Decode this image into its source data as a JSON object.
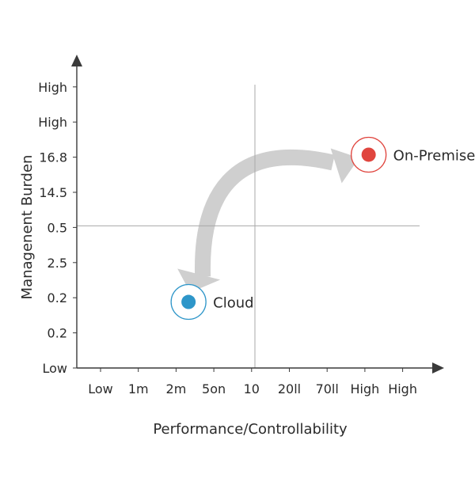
{
  "chart_data": {
    "type": "scatter",
    "xlabel": "Performance/Controllability",
    "ylabel": "Managenent Burden",
    "x_ticks": [
      "Low",
      "1m",
      "2m",
      "5on",
      "10",
      "20ll",
      "70ll",
      "High",
      "High"
    ],
    "y_ticks": [
      "Low",
      "0.2",
      "0.2",
      "2.5",
      "0.5",
      "14.5",
      "16.8",
      "High",
      "High"
    ],
    "xlim": [
      0,
      9
    ],
    "ylim": [
      0,
      8
    ],
    "quadrant_divider": {
      "x": 4.5,
      "y": 4
    },
    "grid": false,
    "points": [
      {
        "label": "Cloud",
        "x": 2.33,
        "y": 1.88,
        "color": "#2e96c9",
        "ring_color": "#2e96c9"
      },
      {
        "label": "On-Premise",
        "x": 7.1,
        "y": 6.07,
        "color": "#e0453e",
        "ring_color": "#e0453e"
      }
    ],
    "connector": {
      "type": "double-headed-arrow",
      "from": "On-Premise",
      "to": "Cloud",
      "color": "#cfcfcf"
    }
  },
  "colors": {
    "axis": "#3a3a3a",
    "divider": "#a8a8a8",
    "text": "#2b2b2b"
  }
}
